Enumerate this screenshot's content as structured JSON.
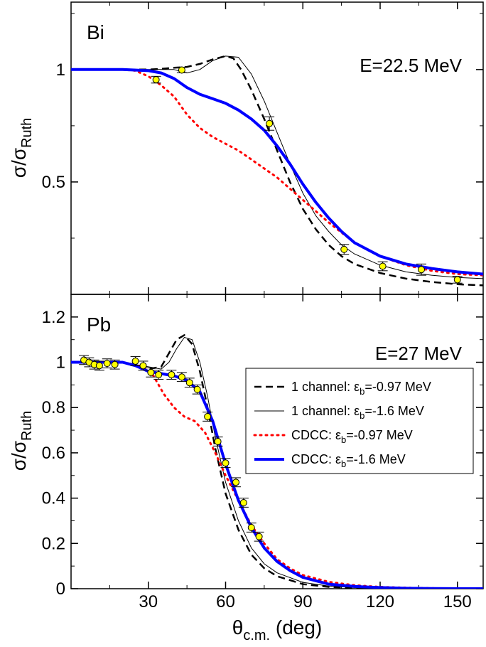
{
  "figure": {
    "xlabel": "θ",
    "xlabel_sub": "c.m.",
    "xlabel_unit": " (deg)",
    "ylabel": "σ/σ",
    "ylabel_sub": "Ruth",
    "colors": {
      "one_channel": "#000000",
      "cdcc_097": "#ff0000",
      "cdcc_16": "#0000ff",
      "marker_fill": "#ffff00"
    }
  },
  "legend": {
    "entries": [
      {
        "prefix": "1 channel: ε",
        "sub": "b",
        "suffix": "=-0.97 MeV"
      },
      {
        "prefix": "1 channel: ε",
        "sub": "b",
        "suffix": "=-1.6 MeV"
      },
      {
        "prefix": "CDCC: ε",
        "sub": "b",
        "suffix": "=-0.97 MeV"
      },
      {
        "prefix": "CDCC: ε",
        "sub": "b",
        "suffix": "=-1.6 MeV"
      }
    ]
  },
  "chart_data": [
    {
      "type": "line",
      "panel": "top",
      "label": "Bi",
      "energy_label": "E=22.5 MeV",
      "xlim": [
        0,
        160
      ],
      "ylim": [
        0,
        1.3
      ],
      "x_ticks": [
        30,
        60,
        90,
        120,
        150
      ],
      "y_ticks": [
        0.5,
        1
      ],
      "y_tick_labels": [
        "0.5",
        "1"
      ],
      "show_x_tick_labels": false,
      "series": [
        {
          "name": "1 channel: εb=-0.97 MeV",
          "style": "dashed",
          "x": [
            0,
            20,
            30,
            35,
            40,
            45,
            50,
            55,
            60,
            63,
            66,
            70,
            75,
            80,
            85,
            90,
            95,
            100,
            105,
            110,
            120,
            130,
            140,
            150,
            160
          ],
          "y": [
            1,
            1,
            1,
            1.003,
            1.008,
            1.012,
            1.025,
            1.045,
            1.06,
            1.05,
            1.0,
            0.91,
            0.78,
            0.64,
            0.5,
            0.38,
            0.29,
            0.22,
            0.17,
            0.135,
            0.095,
            0.07,
            0.055,
            0.045,
            0.04
          ]
        },
        {
          "name": "1 channel: εb=-1.6 MeV",
          "style": "thin",
          "x": [
            0,
            30,
            40,
            45,
            50,
            55,
            60,
            65,
            70,
            75,
            80,
            85,
            90,
            95,
            100,
            105,
            110,
            120,
            130,
            140,
            150,
            160
          ],
          "y": [
            1,
            1,
            1,
            0.985,
            1.0,
            1.04,
            1.06,
            1.055,
            0.98,
            0.86,
            0.72,
            0.58,
            0.45,
            0.35,
            0.28,
            0.22,
            0.18,
            0.13,
            0.1,
            0.085,
            0.075,
            0.07
          ]
        },
        {
          "name": "CDCC: εb=-0.97 MeV",
          "style": "dotted",
          "x": [
            0,
            10,
            20,
            25,
            30,
            35,
            40,
            45,
            50,
            55,
            60,
            65,
            70,
            75,
            80,
            85,
            90,
            95,
            100,
            110,
            120,
            130,
            140,
            150,
            160
          ],
          "y": [
            1,
            1,
            1,
            0.995,
            0.97,
            0.93,
            0.88,
            0.8,
            0.74,
            0.7,
            0.67,
            0.64,
            0.6,
            0.56,
            0.52,
            0.47,
            0.42,
            0.37,
            0.32,
            0.23,
            0.17,
            0.13,
            0.105,
            0.09,
            0.085
          ]
        },
        {
          "name": "CDCC: εb=-1.6 MeV",
          "style": "thick",
          "x": [
            0,
            20,
            30,
            35,
            40,
            45,
            50,
            55,
            60,
            65,
            70,
            75,
            80,
            85,
            90,
            95,
            100,
            105,
            110,
            120,
            130,
            140,
            150,
            160
          ],
          "y": [
            1,
            1,
            0.995,
            0.985,
            0.96,
            0.92,
            0.89,
            0.87,
            0.85,
            0.82,
            0.78,
            0.73,
            0.66,
            0.58,
            0.49,
            0.41,
            0.34,
            0.28,
            0.23,
            0.17,
            0.135,
            0.115,
            0.1,
            0.09
          ]
        }
      ],
      "data_points": [
        {
          "x": 33,
          "y": 0.955,
          "err": 0.015
        },
        {
          "x": 43,
          "y": 0.998,
          "err": 0.012
        },
        {
          "x": 77,
          "y": 0.76,
          "err": 0.03
        },
        {
          "x": 106,
          "y": 0.2,
          "err": 0.022
        },
        {
          "x": 121,
          "y": 0.125,
          "err": 0.02
        },
        {
          "x": 136,
          "y": 0.11,
          "err": 0.025
        },
        {
          "x": 150,
          "y": 0.065,
          "err": 0.015
        }
      ]
    },
    {
      "type": "line",
      "panel": "bottom",
      "label": "Pb",
      "energy_label": "E=27 MeV",
      "xlim": [
        0,
        160
      ],
      "ylim": [
        0,
        1.3
      ],
      "x_ticks": [
        30,
        60,
        90,
        120,
        150
      ],
      "y_ticks": [
        0,
        0.2,
        0.4,
        0.6,
        0.8,
        1,
        1.2
      ],
      "y_tick_labels": [
        "0",
        "0.2",
        "0.4",
        "0.6",
        "0.8",
        "1",
        "1.2"
      ],
      "show_x_tick_labels": true,
      "series": [
        {
          "name": "1 channel: εb=-0.97 MeV",
          "style": "dashed",
          "x": [
            0,
            20,
            25,
            30,
            35,
            38,
            41,
            44,
            47,
            50,
            53,
            56,
            60,
            65,
            70,
            75,
            80,
            90,
            100,
            110,
            120,
            130,
            140,
            150,
            160
          ],
          "y": [
            1,
            1,
            0.99,
            0.97,
            0.98,
            1.04,
            1.1,
            1.12,
            1.08,
            0.96,
            0.8,
            0.62,
            0.42,
            0.26,
            0.15,
            0.09,
            0.055,
            0.02,
            0.008,
            0.004,
            0.002,
            0.001,
            0,
            0,
            0
          ]
        },
        {
          "name": "1 channel: εb=-1.6 MeV",
          "style": "thin",
          "x": [
            0,
            20,
            30,
            35,
            38,
            41,
            44,
            47,
            50,
            53,
            56,
            60,
            65,
            70,
            75,
            80,
            90,
            100,
            110,
            120,
            130,
            140,
            150,
            160
          ],
          "y": [
            1,
            1,
            0.98,
            0.97,
            1.0,
            1.06,
            1.11,
            1.1,
            1.0,
            0.85,
            0.67,
            0.47,
            0.3,
            0.18,
            0.11,
            0.07,
            0.028,
            0.012,
            0.005,
            0.002,
            0.001,
            0,
            0,
            0
          ]
        },
        {
          "name": "CDCC: εb=-0.97 MeV",
          "style": "dotted",
          "x": [
            0,
            20,
            28,
            32,
            36,
            40,
            44,
            48,
            52,
            56,
            60,
            65,
            70,
            75,
            80,
            85,
            90,
            100,
            110,
            120,
            130,
            140,
            150,
            160
          ],
          "y": [
            1,
            1,
            0.98,
            0.94,
            0.86,
            0.8,
            0.76,
            0.74,
            0.69,
            0.6,
            0.5,
            0.39,
            0.28,
            0.2,
            0.13,
            0.09,
            0.06,
            0.03,
            0.015,
            0.008,
            0.004,
            0.002,
            0.001,
            0
          ]
        },
        {
          "name": "CDCC: εb=-1.6 MeV",
          "style": "thick",
          "x": [
            0,
            10,
            20,
            25,
            30,
            35,
            40,
            45,
            50,
            55,
            60,
            65,
            70,
            75,
            80,
            85,
            90,
            100,
            110,
            120,
            130,
            140,
            150,
            160
          ],
          "y": [
            1,
            1,
            1,
            0.985,
            0.96,
            0.95,
            0.94,
            0.92,
            0.87,
            0.74,
            0.55,
            0.39,
            0.27,
            0.18,
            0.12,
            0.08,
            0.05,
            0.02,
            0.01,
            0.005,
            0.002,
            0.001,
            0,
            0
          ]
        }
      ],
      "data_points": [
        {
          "x": 5,
          "y": 1.01,
          "err": 0.02
        },
        {
          "x": 7,
          "y": 1.0,
          "err": 0.02
        },
        {
          "x": 9,
          "y": 0.99,
          "err": 0.02
        },
        {
          "x": 11,
          "y": 0.985,
          "err": 0.02
        },
        {
          "x": 14,
          "y": 0.995,
          "err": 0.02
        },
        {
          "x": 17,
          "y": 0.99,
          "err": 0.02
        },
        {
          "x": 25,
          "y": 1.005,
          "err": 0.02
        },
        {
          "x": 28,
          "y": 0.985,
          "err": 0.02
        },
        {
          "x": 31,
          "y": 0.955,
          "err": 0.02
        },
        {
          "x": 34,
          "y": 0.945,
          "err": 0.02
        },
        {
          "x": 39,
          "y": 0.945,
          "err": 0.02
        },
        {
          "x": 43,
          "y": 0.935,
          "err": 0.02
        },
        {
          "x": 46,
          "y": 0.91,
          "err": 0.02
        },
        {
          "x": 49,
          "y": 0.88,
          "err": 0.02
        },
        {
          "x": 53,
          "y": 0.76,
          "err": 0.02
        },
        {
          "x": 57,
          "y": 0.65,
          "err": 0.02
        },
        {
          "x": 60,
          "y": 0.555,
          "err": 0.02
        },
        {
          "x": 64,
          "y": 0.47,
          "err": 0.02
        },
        {
          "x": 67,
          "y": 0.38,
          "err": 0.02
        },
        {
          "x": 70,
          "y": 0.27,
          "err": 0.02
        },
        {
          "x": 73,
          "y": 0.23,
          "err": 0.02
        }
      ]
    }
  ]
}
